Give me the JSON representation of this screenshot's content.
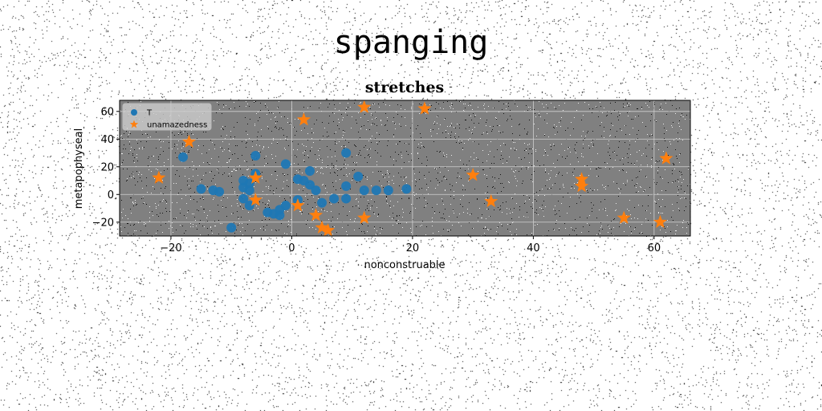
{
  "suptitle": "spanging",
  "chart_data": {
    "type": "scatter",
    "title": "stretches",
    "xlabel": "nonconstruable",
    "ylabel": "metapophyseal",
    "xlim": [
      -28.5,
      66
    ],
    "ylim": [
      -30,
      68
    ],
    "xticks": [
      -20,
      0,
      20,
      40,
      60
    ],
    "yticks": [
      -20,
      0,
      20,
      40,
      60
    ],
    "grid": true,
    "legend_position": "top-left",
    "background_color": "#808080",
    "series": [
      {
        "name": "T",
        "marker": "circle",
        "color": "#1f77b4",
        "points": [
          [
            -18,
            27
          ],
          [
            -6,
            28
          ],
          [
            -15,
            4
          ],
          [
            -13,
            3
          ],
          [
            -12,
            2
          ],
          [
            -8,
            5
          ],
          [
            -8,
            10
          ],
          [
            -7,
            8
          ],
          [
            -7,
            3
          ],
          [
            -8,
            -3
          ],
          [
            -7,
            -8
          ],
          [
            -6,
            15
          ],
          [
            -4,
            -13
          ],
          [
            -3,
            -14
          ],
          [
            -2,
            -15
          ],
          [
            -2,
            -11
          ],
          [
            -1,
            -8
          ],
          [
            -1,
            22
          ],
          [
            1,
            -4
          ],
          [
            1,
            11
          ],
          [
            2,
            10
          ],
          [
            3,
            17
          ],
          [
            3,
            7
          ],
          [
            4,
            3
          ],
          [
            5,
            -6
          ],
          [
            7,
            -3
          ],
          [
            9,
            -3
          ],
          [
            9,
            30
          ],
          [
            9,
            6
          ],
          [
            11,
            13
          ],
          [
            12,
            3
          ],
          [
            14,
            3
          ],
          [
            16,
            3
          ],
          [
            19,
            4
          ],
          [
            -10,
            -24
          ]
        ]
      },
      {
        "name": "unamazedness",
        "marker": "star",
        "color": "#ff7f0e",
        "points": [
          [
            -22,
            12
          ],
          [
            -17,
            38
          ],
          [
            -6,
            12
          ],
          [
            -6,
            -4
          ],
          [
            1,
            -8
          ],
          [
            2,
            54
          ],
          [
            4,
            -15
          ],
          [
            5,
            -24
          ],
          [
            6,
            -26
          ],
          [
            12,
            63
          ],
          [
            12,
            -17
          ],
          [
            22,
            62
          ],
          [
            30,
            14
          ],
          [
            33,
            -5
          ],
          [
            48,
            11
          ],
          [
            48,
            6
          ],
          [
            55,
            -17
          ],
          [
            61,
            -20
          ],
          [
            62,
            26
          ]
        ]
      }
    ]
  }
}
